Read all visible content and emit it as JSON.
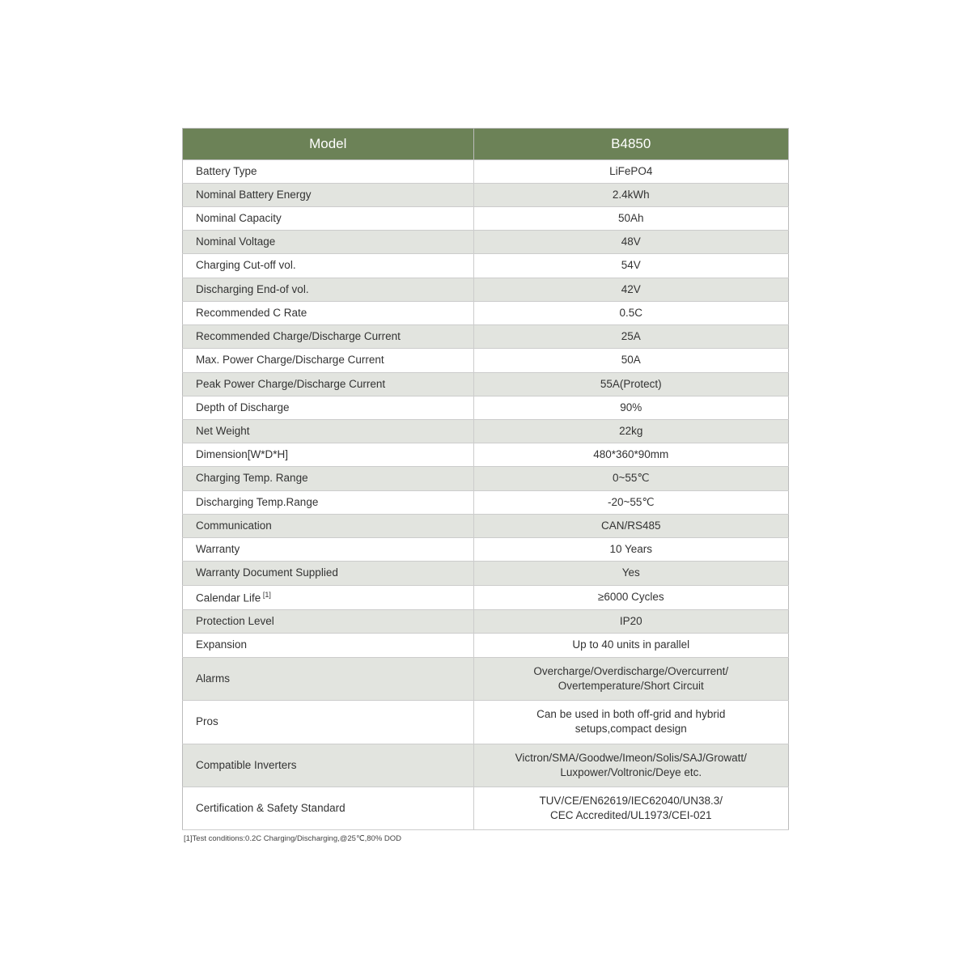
{
  "table": {
    "header_bg": "#6c8257",
    "header_text_color": "#ffffff",
    "row_odd_bg": "#ffffff",
    "row_even_bg": "#e2e4df",
    "border_color": "#bbb",
    "columns": [
      "Model",
      "B4850"
    ],
    "rows": [
      {
        "label": "Battery Type",
        "value": "LiFePO4"
      },
      {
        "label": "Nominal Battery Energy",
        "value": "2.4kWh"
      },
      {
        "label": "Nominal Capacity",
        "value": "50Ah"
      },
      {
        "label": "Nominal Voltage",
        "value": "48V"
      },
      {
        "label": "Charging Cut-off vol.",
        "value": "54V"
      },
      {
        "label": "Discharging End-of vol.",
        "value": "42V"
      },
      {
        "label": "Recommended C Rate",
        "value": "0.5C"
      },
      {
        "label": "Recommended Charge/Discharge Current",
        "value": "25A"
      },
      {
        "label": "Max. Power Charge/Discharge Current",
        "value": "50A"
      },
      {
        "label": "Peak Power Charge/Discharge Current",
        "value": "55A(Protect)"
      },
      {
        "label": "Depth of Discharge",
        "value": "90%"
      },
      {
        "label": "Net Weight",
        "value": "22kg"
      },
      {
        "label": "Dimension[W*D*H]",
        "value": "480*360*90mm"
      },
      {
        "label": "Charging Temp. Range",
        "value": "0~55℃"
      },
      {
        "label": "Discharging Temp.Range",
        "value": "-20~55℃"
      },
      {
        "label": "Communication",
        "value": "CAN/RS485"
      },
      {
        "label": "Warranty",
        "value": "10 Years"
      },
      {
        "label": "Warranty Document Supplied",
        "value": "Yes"
      },
      {
        "label": "Calendar Life",
        "sup": "[1]",
        "value": "≥6000 Cycles"
      },
      {
        "label": "Protection Level",
        "value": "IP20"
      },
      {
        "label": "Expansion",
        "value": "Up to 40 units in parallel"
      },
      {
        "label": "Alarms",
        "value": "Overcharge/Overdischarge/Overcurrent/\nOvertemperature/Short Circuit",
        "tall": true
      },
      {
        "label": "Pros",
        "value": "Can be used in both off-grid and hybrid\nsetups,compact design",
        "tall": true
      },
      {
        "label": "Compatible Inverters",
        "value": "Victron/SMA/Goodwe/Imeon/Solis/SAJ/Growatt/\nLuxpower/Voltronic/Deye etc.",
        "tall": true
      },
      {
        "label": "Certification & Safety Standard",
        "value": "TUV/CE/EN62619/IEC62040/UN38.3/\nCEC Accredited/UL1973/CEI-021",
        "tall": true
      }
    ]
  },
  "footnote": "[1]Test conditions:0.2C Charging/Discharging,@25℃,80% DOD"
}
